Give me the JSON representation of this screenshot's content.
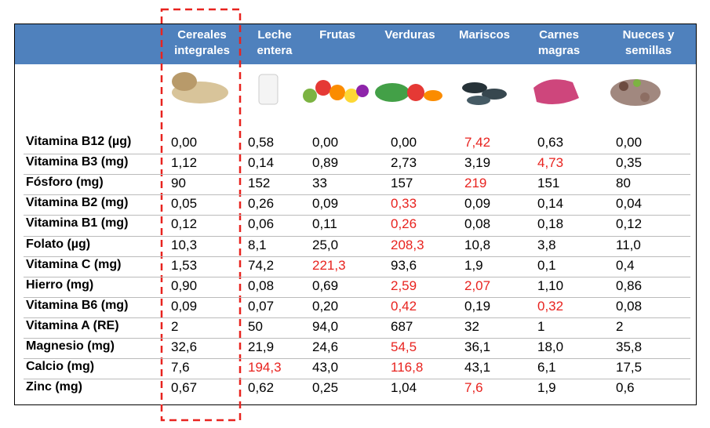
{
  "table": {
    "header_color": "#4f81bd",
    "highlight_color": "#e8231f",
    "columns": [
      "Cereales integrales",
      "Leche entera",
      "Frutas",
      "Verduras",
      "Mariscos",
      "Carnes magras",
      "Nueces y semillas"
    ],
    "rows": [
      {
        "label": "Vitamina B12 (µg)",
        "values": [
          "0,00",
          "0,58",
          "0,00",
          "0,00",
          "7,42",
          "0,63",
          "0,00"
        ],
        "highlight": [
          4
        ]
      },
      {
        "label": "Vitamina B3 (mg)",
        "values": [
          "1,12",
          "0,14",
          "0,89",
          "2,73",
          "3,19",
          "4,73",
          "0,35"
        ],
        "highlight": [
          5
        ]
      },
      {
        "label": "Fósforo (mg)",
        "values": [
          "90",
          "152",
          "33",
          "157",
          "219",
          "151",
          "80"
        ],
        "highlight": [
          4
        ]
      },
      {
        "label": "Vitamina B2 (mg)",
        "values": [
          "0,05",
          "0,26",
          "0,09",
          "0,33",
          "0,09",
          "0,14",
          "0,04"
        ],
        "highlight": [
          3
        ]
      },
      {
        "label": "Vitamina B1 (mg)",
        "values": [
          "0,12",
          "0,06",
          "0,11",
          "0,26",
          "0,08",
          "0,18",
          "0,12"
        ],
        "highlight": [
          3
        ]
      },
      {
        "label": "Folato (µg)",
        "values": [
          "10,3",
          "8,1",
          "25,0",
          "208,3",
          "10,8",
          "3,8",
          "11,0"
        ],
        "highlight": [
          3
        ]
      },
      {
        "label": "Vitamina C (mg)",
        "values": [
          "1,53",
          "74,2",
          "221,3",
          "93,6",
          "1,9",
          "0,1",
          "0,4"
        ],
        "highlight": [
          2
        ]
      },
      {
        "label": "Hierro (mg)",
        "values": [
          "0,90",
          "0,08",
          "0,69",
          "2,59",
          "2,07",
          "1,10",
          "0,86"
        ],
        "highlight": [
          3,
          4
        ]
      },
      {
        "label": "Vitamina B6 (mg)",
        "values": [
          "0,09",
          "0,07",
          "0,20",
          "0,42",
          "0,19",
          "0,32",
          "0,08"
        ],
        "highlight": [
          3,
          5
        ]
      },
      {
        "label": "Vitamina A (RE)",
        "values": [
          "2",
          "50",
          "94,0",
          "687",
          "32",
          "1",
          "2"
        ],
        "highlight": []
      },
      {
        "label": "Magnesio (mg)",
        "values": [
          "32,6",
          "21,9",
          "24,6",
          "54,5",
          "36,1",
          "18,0",
          "35,8"
        ],
        "highlight": [
          3
        ]
      },
      {
        "label": "Calcio (mg)",
        "values": [
          "7,6",
          "194,3",
          "43,0",
          "116,8",
          "43,1",
          "6,1",
          "17,5"
        ],
        "highlight": [
          1,
          3
        ]
      },
      {
        "label": "Zinc (mg)",
        "values": [
          "0,67",
          "0,62",
          "0,25",
          "1,04",
          "7,6",
          "1,9",
          "0,6"
        ],
        "highlight": [
          4
        ]
      }
    ]
  }
}
